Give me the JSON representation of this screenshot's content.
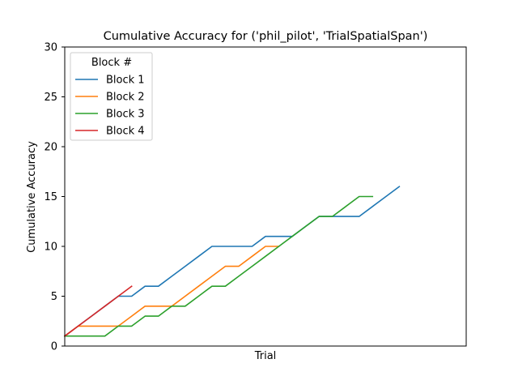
{
  "chart_data": {
    "type": "line",
    "title": "Cumulative Accuracy for ('phil_pilot', 'TrialSpatialSpan')",
    "xlabel": "Trial",
    "ylabel": "Cumulative Accuracy",
    "xlim": [
      0,
      30
    ],
    "ylim": [
      0,
      30
    ],
    "yticks": [
      0,
      5,
      10,
      15,
      20,
      25,
      30
    ],
    "grid": false,
    "legend": {
      "title": "Block #",
      "placement": "top-left"
    },
    "series": [
      {
        "name": "Block 1",
        "color": "#1f77b4",
        "points": [
          [
            0,
            1
          ],
          [
            1,
            2
          ],
          [
            2,
            3
          ],
          [
            3,
            4
          ],
          [
            4,
            5
          ],
          [
            5,
            5
          ],
          [
            6,
            6
          ],
          [
            7,
            6
          ],
          [
            8,
            7
          ],
          [
            9,
            8
          ],
          [
            10,
            9
          ],
          [
            11,
            10
          ],
          [
            12,
            10
          ],
          [
            13,
            10
          ],
          [
            14,
            10
          ],
          [
            15,
            11
          ],
          [
            16,
            11
          ],
          [
            17,
            11
          ],
          [
            18,
            12
          ],
          [
            19,
            13
          ],
          [
            20,
            13
          ],
          [
            21,
            13
          ],
          [
            22,
            13
          ],
          [
            23,
            14
          ],
          [
            24,
            15
          ],
          [
            25,
            16
          ]
        ]
      },
      {
        "name": "Block 2",
        "color": "#ff7f0e",
        "points": [
          [
            0,
            1
          ],
          [
            1,
            2
          ],
          [
            2,
            2
          ],
          [
            3,
            2
          ],
          [
            4,
            2
          ],
          [
            5,
            3
          ],
          [
            6,
            4
          ],
          [
            7,
            4
          ],
          [
            8,
            4
          ],
          [
            9,
            5
          ],
          [
            10,
            6
          ],
          [
            11,
            7
          ],
          [
            12,
            8
          ],
          [
            13,
            8
          ],
          [
            14,
            9
          ],
          [
            15,
            10
          ],
          [
            16,
            10
          ]
        ]
      },
      {
        "name": "Block 3",
        "color": "#2ca02c",
        "points": [
          [
            0,
            1
          ],
          [
            1,
            1
          ],
          [
            2,
            1
          ],
          [
            3,
            1
          ],
          [
            4,
            2
          ],
          [
            5,
            2
          ],
          [
            6,
            3
          ],
          [
            7,
            3
          ],
          [
            8,
            4
          ],
          [
            9,
            4
          ],
          [
            10,
            5
          ],
          [
            11,
            6
          ],
          [
            12,
            6
          ],
          [
            13,
            7
          ],
          [
            14,
            8
          ],
          [
            15,
            9
          ],
          [
            16,
            10
          ],
          [
            17,
            11
          ],
          [
            18,
            12
          ],
          [
            19,
            13
          ],
          [
            20,
            13
          ],
          [
            21,
            14
          ],
          [
            22,
            15
          ],
          [
            23,
            15
          ]
        ]
      },
      {
        "name": "Block 4",
        "color": "#d62728",
        "points": [
          [
            0,
            1
          ],
          [
            1,
            2
          ],
          [
            2,
            3
          ],
          [
            3,
            4
          ],
          [
            4,
            5
          ],
          [
            5,
            6
          ]
        ]
      }
    ]
  }
}
